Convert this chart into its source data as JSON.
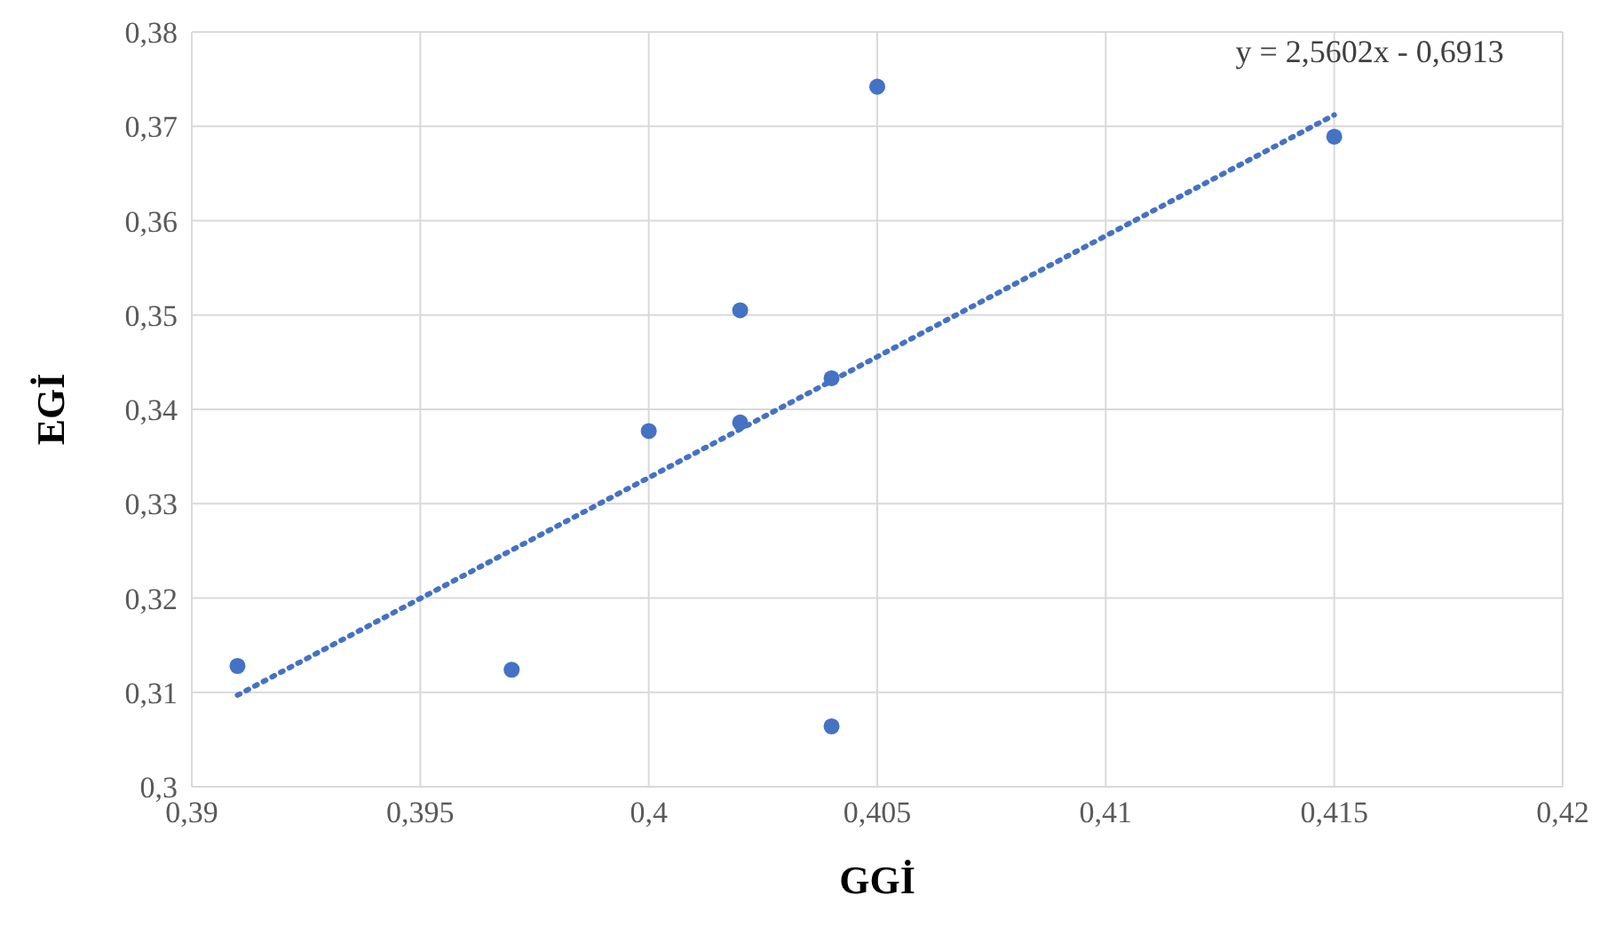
{
  "chart_data": {
    "type": "scatter",
    "xlabel": "GGİ",
    "ylabel": "EGİ",
    "x": [
      0.391,
      0.397,
      0.4,
      0.402,
      0.402,
      0.404,
      0.404,
      0.405,
      0.415
    ],
    "series": [
      {
        "color": "#4472c4",
        "values": [
          0.3128,
          0.3124,
          0.3377,
          0.3505,
          0.3386,
          0.3433,
          0.3064,
          0.3742,
          0.3689
        ]
      },
      {
        "type": "line",
        "name": "y = 2,5602x - 0,6913",
        "color": "#4472c4",
        "line_style": "dotted",
        "marker": "none",
        "x": [
          0.391,
          0.415
        ],
        "values": [
          0.3097,
          0.3712
        ]
      }
    ],
    "marker": "circle",
    "grid": true,
    "legend": false,
    "xlim": [
      0.39,
      0.42
    ],
    "xticks": [
      {
        "value": 0.39,
        "label": "0,39"
      },
      {
        "value": 0.395,
        "label": "0,395"
      },
      {
        "value": 0.4,
        "label": "0,4"
      },
      {
        "value": 0.405,
        "label": "0,405"
      },
      {
        "value": 0.41,
        "label": "0,41"
      },
      {
        "value": 0.415,
        "label": "0,415"
      },
      {
        "value": 0.42,
        "label": "0,42"
      }
    ],
    "ylim": [
      0.3,
      0.38
    ],
    "yticks": [
      {
        "value": 0.3,
        "label": "0,3"
      },
      {
        "value": 0.31,
        "label": "0,31"
      },
      {
        "value": 0.32,
        "label": "0,32"
      },
      {
        "value": 0.33,
        "label": "0,33"
      },
      {
        "value": 0.34,
        "label": "0,34"
      },
      {
        "value": 0.35,
        "label": "0,35"
      },
      {
        "value": 0.36,
        "label": "0,36"
      },
      {
        "value": 0.37,
        "label": "0,37"
      },
      {
        "value": 0.38,
        "label": "0,38"
      }
    ]
  }
}
